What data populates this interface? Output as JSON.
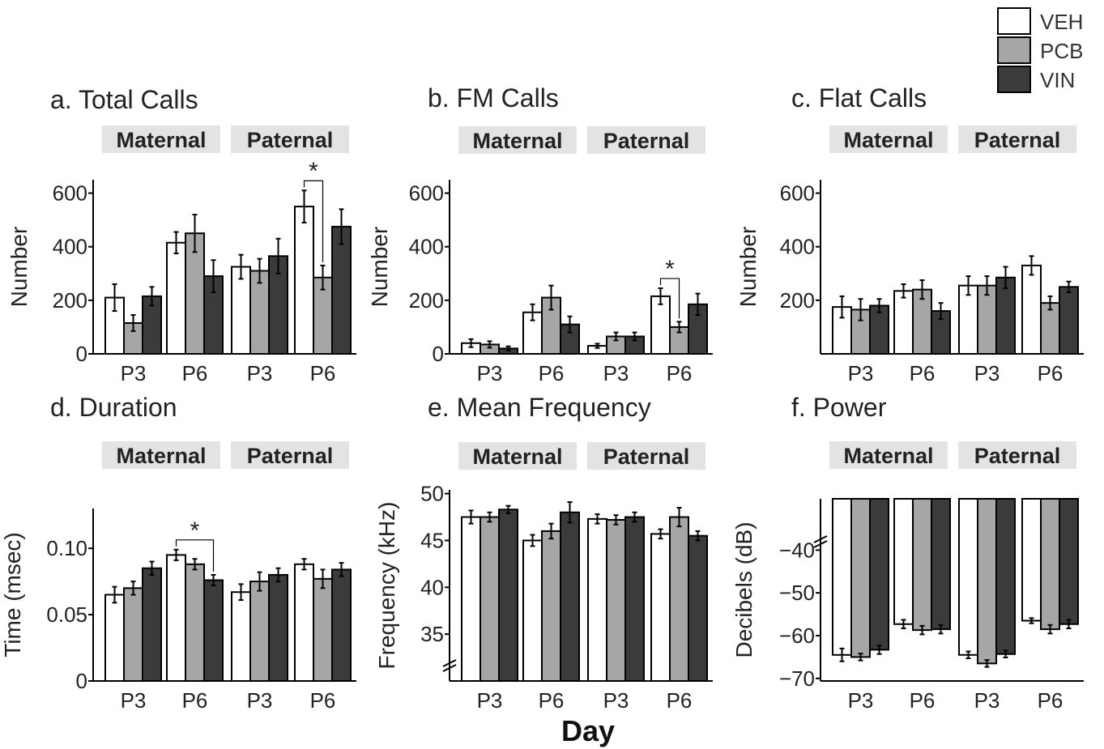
{
  "legend": {
    "placement": "top-right",
    "entries": [
      {
        "label": "VEH",
        "color": "#ffffff"
      },
      {
        "label": "PCB",
        "color": "#a6a6a6"
      },
      {
        "label": "VIN",
        "color": "#3b3b3b"
      }
    ]
  },
  "figure": {
    "xlabel": "Day",
    "group_labels": [
      "Maternal",
      "Paternal"
    ],
    "categories": [
      "P3",
      "P6",
      "P3",
      "P6"
    ]
  },
  "colors": {
    "VEH": "#ffffff",
    "PCB": "#a6a6a6",
    "VIN": "#3b3b3b",
    "strip": "#e3e3e3"
  },
  "chart_data": [
    {
      "type": "bar",
      "title": "a. Total Calls",
      "ylabel": "Number",
      "ylim": [
        0,
        650
      ],
      "yticks": [
        "0",
        "200",
        "400",
        "600"
      ],
      "ytick_values": [
        0,
        200,
        400,
        600
      ],
      "categories": [
        "P3",
        "P6",
        "P3",
        "P6"
      ],
      "series": [
        {
          "name": "VEH",
          "values": [
            210,
            415,
            325,
            550
          ],
          "err": [
            50,
            40,
            45,
            60
          ]
        },
        {
          "name": "PCB",
          "values": [
            115,
            450,
            310,
            285
          ],
          "err": [
            30,
            70,
            45,
            45
          ]
        },
        {
          "name": "VIN",
          "values": [
            215,
            290,
            365,
            475
          ],
          "err": [
            35,
            60,
            65,
            65
          ]
        }
      ],
      "significance": [
        {
          "category": 3,
          "from": "VEH",
          "to": "PCB",
          "label": "*"
        }
      ]
    },
    {
      "type": "bar",
      "title": "b. FM Calls",
      "ylabel": "Number",
      "ylim": [
        0,
        650
      ],
      "yticks": [
        "0",
        "200",
        "400",
        "600"
      ],
      "ytick_values": [
        0,
        200,
        400,
        600
      ],
      "categories": [
        "P3",
        "P6",
        "P3",
        "P6"
      ],
      "series": [
        {
          "name": "VEH",
          "values": [
            40,
            155,
            30,
            215
          ],
          "err": [
            15,
            30,
            8,
            30
          ]
        },
        {
          "name": "PCB",
          "values": [
            35,
            210,
            65,
            100
          ],
          "err": [
            12,
            45,
            15,
            20
          ]
        },
        {
          "name": "VIN",
          "values": [
            20,
            110,
            65,
            185
          ],
          "err": [
            8,
            30,
            15,
            40
          ]
        }
      ],
      "significance": [
        {
          "category": 3,
          "from": "VEH",
          "to": "PCB",
          "label": "*"
        }
      ]
    },
    {
      "type": "bar",
      "title": "c. Flat Calls",
      "ylabel": "Number",
      "ylim": [
        0,
        650
      ],
      "yticks": [
        "200",
        "400",
        "600"
      ],
      "ytick_values": [
        200,
        400,
        600
      ],
      "categories": [
        "P3",
        "P6",
        "P3",
        "P6"
      ],
      "series": [
        {
          "name": "VEH",
          "values": [
            175,
            235,
            255,
            330
          ],
          "err": [
            40,
            25,
            35,
            35
          ]
        },
        {
          "name": "PCB",
          "values": [
            165,
            240,
            255,
            190
          ],
          "err": [
            40,
            35,
            35,
            25
          ]
        },
        {
          "name": "VIN",
          "values": [
            180,
            160,
            285,
            250
          ],
          "err": [
            25,
            30,
            40,
            20
          ]
        }
      ],
      "significance": []
    },
    {
      "type": "bar",
      "title": "d. Duration",
      "ylabel": "Time (msec)",
      "ylim": [
        0,
        0.13
      ],
      "yticks": [
        "0",
        "0.05",
        "0.10"
      ],
      "ytick_values": [
        0,
        0.05,
        0.1
      ],
      "categories": [
        "P3",
        "P6",
        "P3",
        "P6"
      ],
      "series": [
        {
          "name": "VEH",
          "values": [
            0.065,
            0.095,
            0.067,
            0.088
          ],
          "err": [
            0.006,
            0.004,
            0.006,
            0.004
          ]
        },
        {
          "name": "PCB",
          "values": [
            0.07,
            0.088,
            0.075,
            0.077
          ],
          "err": [
            0.005,
            0.004,
            0.007,
            0.007
          ]
        },
        {
          "name": "VIN",
          "values": [
            0.085,
            0.076,
            0.08,
            0.084
          ],
          "err": [
            0.005,
            0.004,
            0.005,
            0.005
          ]
        }
      ],
      "significance": [
        {
          "category": 1,
          "from": "VEH",
          "to": "VIN",
          "label": "*"
        }
      ]
    },
    {
      "type": "bar",
      "title": "e. Mean Frequency",
      "ylabel": "Frequency (kHz)",
      "ylim": [
        30,
        50
      ],
      "axis_break": true,
      "yticks": [
        "35",
        "40",
        "45",
        "50"
      ],
      "ytick_values": [
        35,
        40,
        45,
        50
      ],
      "categories": [
        "P3",
        "P6",
        "P3",
        "P6"
      ],
      "series": [
        {
          "name": "VEH",
          "values": [
            47.5,
            45,
            47.3,
            45.7
          ],
          "err": [
            0.7,
            0.6,
            0.5,
            0.5
          ]
        },
        {
          "name": "PCB",
          "values": [
            47.5,
            46,
            47.2,
            47.5
          ],
          "err": [
            0.5,
            0.8,
            0.5,
            1.0
          ]
        },
        {
          "name": "VIN",
          "values": [
            48.3,
            48,
            47.5,
            45.5
          ],
          "err": [
            0.4,
            1.1,
            0.5,
            0.5
          ]
        }
      ],
      "significance": []
    },
    {
      "type": "bar",
      "title": "f. Power",
      "ylabel": "Decibels (dB)",
      "ylim": [
        -70,
        -28
      ],
      "axis_break": true,
      "bars_hang_from_top": true,
      "yticks": [
        "-40",
        "-50",
        "-60",
        "-70"
      ],
      "ytick_values": [
        -40,
        -50,
        -60,
        -70
      ],
      "categories": [
        "P3",
        "P6",
        "P3",
        "P6"
      ],
      "series": [
        {
          "name": "VEH",
          "values": [
            -64.5,
            -57.3,
            -64.5,
            -56.5
          ],
          "err": [
            1.5,
            1.0,
            0.8,
            0.6
          ]
        },
        {
          "name": "PCB",
          "values": [
            -65,
            -58.7,
            -66.5,
            -58.5
          ],
          "err": [
            0.8,
            1.0,
            0.8,
            1.0
          ]
        },
        {
          "name": "VIN",
          "values": [
            -63.3,
            -58.5,
            -64.3,
            -57.3
          ],
          "err": [
            1.0,
            1.0,
            0.8,
            1.0
          ]
        }
      ],
      "significance": []
    }
  ]
}
